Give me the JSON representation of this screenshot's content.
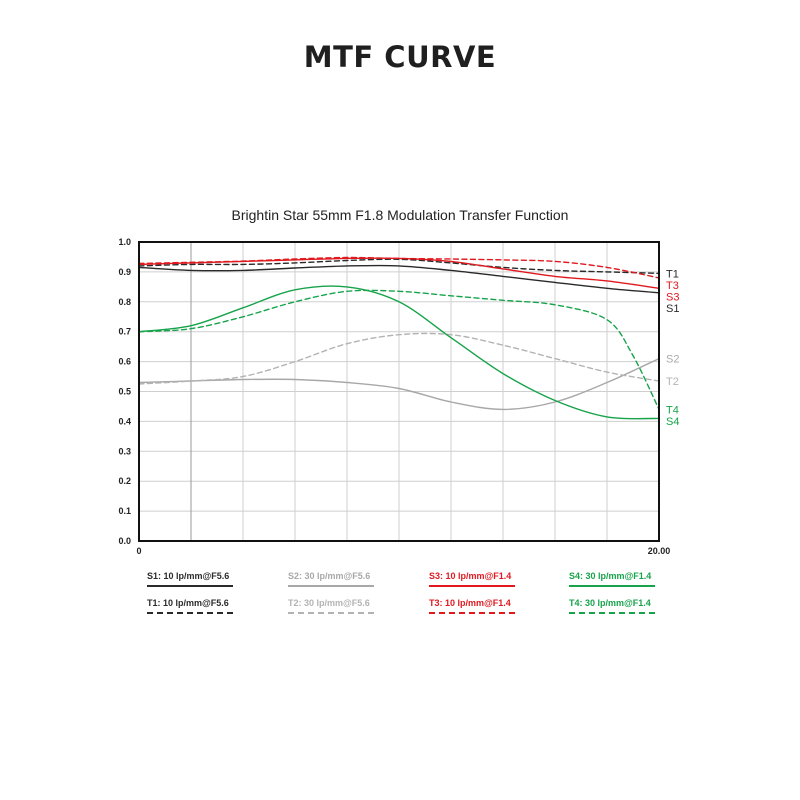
{
  "page": {
    "title": "MTF CURVE"
  },
  "chart_data": {
    "type": "line",
    "title": "Brightin Star 55mm F1.8 Modulation Transfer Function",
    "xlabel": "",
    "ylabel": "",
    "xlim": [
      0,
      20
    ],
    "ylim": [
      0,
      1
    ],
    "x_tick_labels": [
      "0",
      "20.00"
    ],
    "y_tick_labels": [
      "0.0",
      "0.1",
      "0.2",
      "0.3",
      "0.4",
      "0.5",
      "0.6",
      "0.7",
      "0.8",
      "0.9",
      "1.0"
    ],
    "grid": true,
    "legend_position": "bottom",
    "series": [
      {
        "key": "S1",
        "name": "S1: 10 lp/mm@F5.6",
        "end_label": "S1",
        "color": "#2a2a2a",
        "dash": false,
        "x": [
          0,
          2,
          4,
          6,
          8,
          10,
          12,
          14,
          16,
          18,
          20
        ],
        "y": [
          0.915,
          0.905,
          0.905,
          0.913,
          0.92,
          0.92,
          0.905,
          0.885,
          0.865,
          0.845,
          0.83
        ]
      },
      {
        "key": "T1",
        "name": "T1: 10 lp/mm@F5.6",
        "end_label": "T1",
        "color": "#2a2a2a",
        "dash": true,
        "x": [
          0,
          2,
          4,
          6,
          8,
          10,
          12,
          14,
          16,
          18,
          20
        ],
        "y": [
          0.92,
          0.925,
          0.925,
          0.93,
          0.938,
          0.942,
          0.93,
          0.915,
          0.905,
          0.9,
          0.895
        ]
      },
      {
        "key": "S2",
        "name": "S2: 30 lp/mm@F5.6",
        "end_label": "S2",
        "color": "#a8a8a8",
        "dash": false,
        "x": [
          0,
          2,
          4,
          6,
          8,
          10,
          12,
          14,
          16,
          18,
          20
        ],
        "y": [
          0.53,
          0.535,
          0.54,
          0.54,
          0.53,
          0.51,
          0.465,
          0.44,
          0.465,
          0.53,
          0.61
        ]
      },
      {
        "key": "T2",
        "name": "T2: 30 lp/mm@F5.6",
        "end_label": "T2",
        "color": "#b3b3b3",
        "dash": true,
        "x": [
          0,
          2,
          4,
          6,
          8,
          10,
          12,
          14,
          16,
          18,
          20
        ],
        "y": [
          0.525,
          0.535,
          0.55,
          0.6,
          0.66,
          0.69,
          0.69,
          0.655,
          0.61,
          0.565,
          0.535
        ]
      },
      {
        "key": "S3",
        "name": "S3: 10 lp/mm@F1.4",
        "end_label": "S3",
        "color": "#e0191f",
        "dash": false,
        "x": [
          0,
          2,
          4,
          6,
          8,
          10,
          12,
          14,
          16,
          18,
          20
        ],
        "y": [
          0.925,
          0.93,
          0.935,
          0.94,
          0.945,
          0.945,
          0.935,
          0.91,
          0.885,
          0.87,
          0.845
        ]
      },
      {
        "key": "T3",
        "name": "T3: 10 lp/mm@F1.4",
        "end_label": "T3",
        "color": "#e0191f",
        "dash": true,
        "x": [
          0,
          2,
          4,
          6,
          8,
          10,
          12,
          14,
          16,
          18,
          20
        ],
        "y": [
          0.928,
          0.932,
          0.936,
          0.943,
          0.948,
          0.945,
          0.943,
          0.94,
          0.935,
          0.915,
          0.88
        ]
      },
      {
        "key": "S4",
        "name": "S4: 30 lp/mm@F1.4",
        "end_label": "S4",
        "color": "#16a34a",
        "dash": false,
        "x": [
          0,
          2,
          4,
          6,
          8,
          10,
          12,
          14,
          16,
          18,
          20
        ],
        "y": [
          0.7,
          0.72,
          0.78,
          0.84,
          0.85,
          0.8,
          0.68,
          0.56,
          0.47,
          0.415,
          0.41
        ]
      },
      {
        "key": "T4",
        "name": "T4: 30 lp/mm@F1.4",
        "end_label": "T4",
        "color": "#16a34a",
        "dash": true,
        "x": [
          0,
          2,
          4,
          6,
          8,
          10,
          12,
          14,
          16,
          18,
          19,
          20
        ],
        "y": [
          0.7,
          0.71,
          0.75,
          0.8,
          0.835,
          0.835,
          0.82,
          0.805,
          0.79,
          0.74,
          0.62,
          0.44
        ]
      }
    ]
  }
}
